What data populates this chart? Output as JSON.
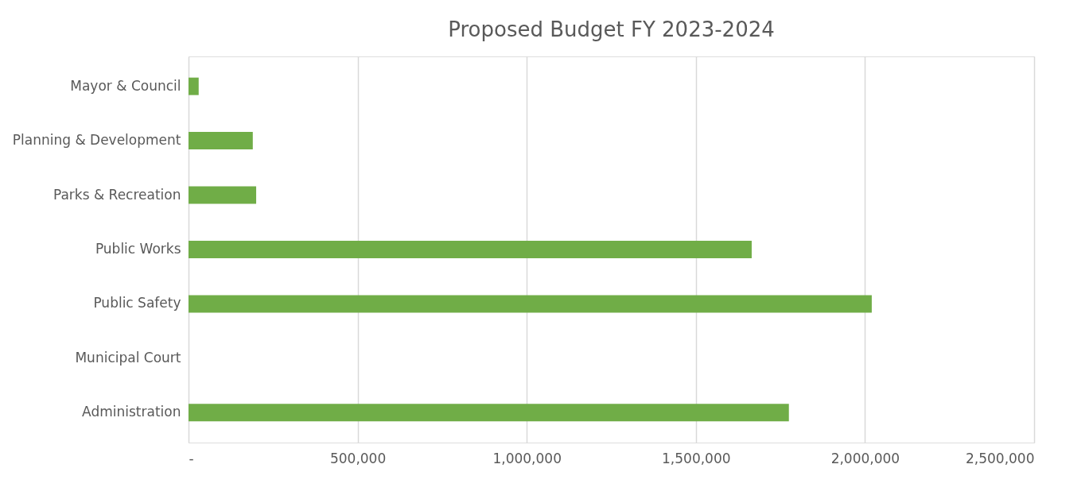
{
  "chart_data": {
    "type": "bar",
    "orientation": "horizontal",
    "title": "Proposed Budget FY 2023-2024",
    "categories": [
      "Mayor & Council",
      "Planning & Development",
      "Parks & Recreation",
      "Public Works",
      "Public Safety",
      "Municipal Court",
      "Administration"
    ],
    "values": [
      30000,
      190000,
      200000,
      1665000,
      2020000,
      0,
      1775000
    ],
    "color": "#70ad47",
    "xlim": [
      0,
      2500000
    ],
    "xticks": [
      {
        "value": 0,
        "label": "-"
      },
      {
        "value": 500000,
        "label": "500,000"
      },
      {
        "value": 1000000,
        "label": "1,000,000"
      },
      {
        "value": 1500000,
        "label": "1,500,000"
      },
      {
        "value": 2000000,
        "label": "2,000,000"
      },
      {
        "value": 2500000,
        "label": "2,500,000"
      }
    ],
    "grid": "x"
  }
}
